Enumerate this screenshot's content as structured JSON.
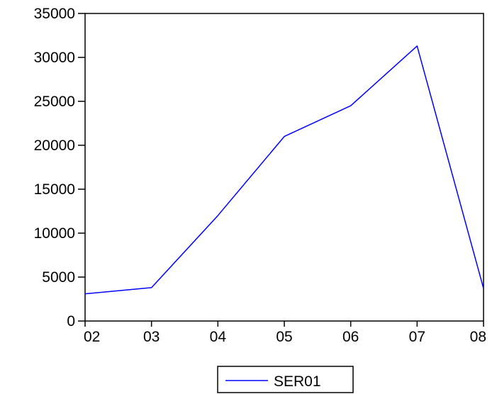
{
  "chart_data": {
    "type": "line",
    "title": "",
    "xlabel": "",
    "ylabel": "",
    "categories": [
      "02",
      "03",
      "04",
      "05",
      "06",
      "07",
      "08"
    ],
    "series": [
      {
        "name": "SER01",
        "color": "#0000ff",
        "values": [
          3100,
          3800,
          12000,
          21000,
          24500,
          31300,
          3700
        ]
      }
    ],
    "ylim": [
      0,
      35000
    ],
    "yticks": [
      0,
      5000,
      10000,
      15000,
      20000,
      25000,
      30000,
      35000
    ],
    "ytick_labels": [
      "0",
      "5000",
      "10000",
      "15000",
      "20000",
      "25000",
      "30000",
      "35000"
    ],
    "grid": false,
    "legend_position": "bottom-center"
  }
}
